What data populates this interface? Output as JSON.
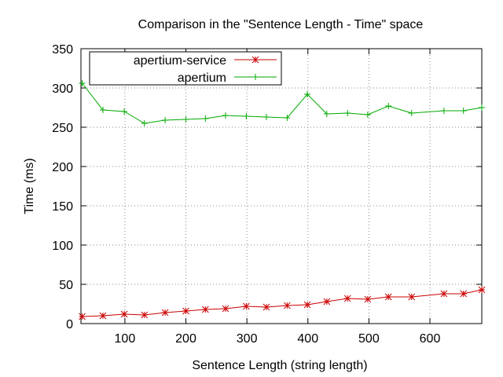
{
  "chart_data": {
    "type": "line",
    "title": "Comparison in the \"Sentence Length - Time\" space",
    "xlabel": "Sentence Length (string length)",
    "ylabel": "Time (ms)",
    "xlim": [
      28,
      685
    ],
    "ylim": [
      0,
      350
    ],
    "x_ticks": [
      100,
      200,
      300,
      400,
      500,
      600
    ],
    "y_ticks": [
      0,
      50,
      100,
      150,
      200,
      250,
      300,
      350
    ],
    "grid": true,
    "legend_position": "top-left",
    "series": [
      {
        "name": "apertium-service",
        "color": "#cc0000",
        "marker": "star",
        "x": [
          30,
          64,
          99,
          132,
          166,
          200,
          232,
          265,
          299,
          332,
          366,
          399,
          431,
          465,
          498,
          532,
          570,
          623,
          655,
          685
        ],
        "y": [
          9,
          10,
          12,
          11,
          14,
          16,
          18,
          19,
          22,
          21,
          23,
          24,
          28,
          32,
          31,
          34,
          34,
          38,
          38,
          43
        ]
      },
      {
        "name": "apertium",
        "color": "#00aa00",
        "marker": "plus",
        "x": [
          30,
          64,
          99,
          132,
          166,
          200,
          232,
          265,
          299,
          332,
          366,
          399,
          431,
          465,
          498,
          532,
          570,
          623,
          655,
          685
        ],
        "y": [
          306,
          272,
          270,
          255,
          259,
          260,
          261,
          265,
          264,
          263,
          262,
          292,
          267,
          268,
          266,
          277,
          268,
          271,
          271,
          275
        ]
      }
    ]
  }
}
